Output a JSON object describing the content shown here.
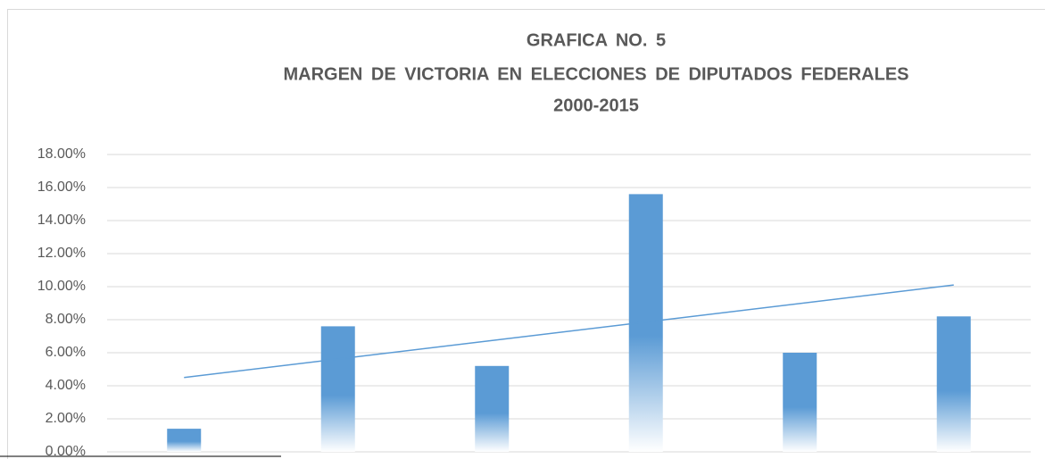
{
  "chart_data": {
    "type": "bar",
    "title": [
      "GRAFICA  NO.  5",
      "MARGEN  DE  VICTORIA  EN  ELECCIONES  DE  DIPUTADOS  FEDERALES",
      "2000-2015"
    ],
    "categories": [
      null,
      null,
      null,
      null,
      null,
      null
    ],
    "values": [
      1.4,
      7.6,
      5.2,
      15.6,
      6.0,
      8.2
    ],
    "color": "#5b9bd5",
    "trendline": {
      "values": [
        4.5,
        10.1
      ],
      "color": "#5b9bd5"
    },
    "ylim": [
      0,
      18
    ],
    "yticks": [
      {
        "value": 0,
        "label": "0.00%"
      },
      {
        "value": 2,
        "label": "2.00%"
      },
      {
        "value": 4,
        "label": "4.00%"
      },
      {
        "value": 6,
        "label": "6.00%"
      },
      {
        "value": 8,
        "label": "8.00%"
      },
      {
        "value": 10,
        "label": "10.00%"
      },
      {
        "value": 12,
        "label": "12.00%"
      },
      {
        "value": 14,
        "label": "14.00%"
      },
      {
        "value": 16,
        "label": "16.00%"
      },
      {
        "value": 18,
        "label": "18.00%"
      }
    ],
    "grid": true
  }
}
